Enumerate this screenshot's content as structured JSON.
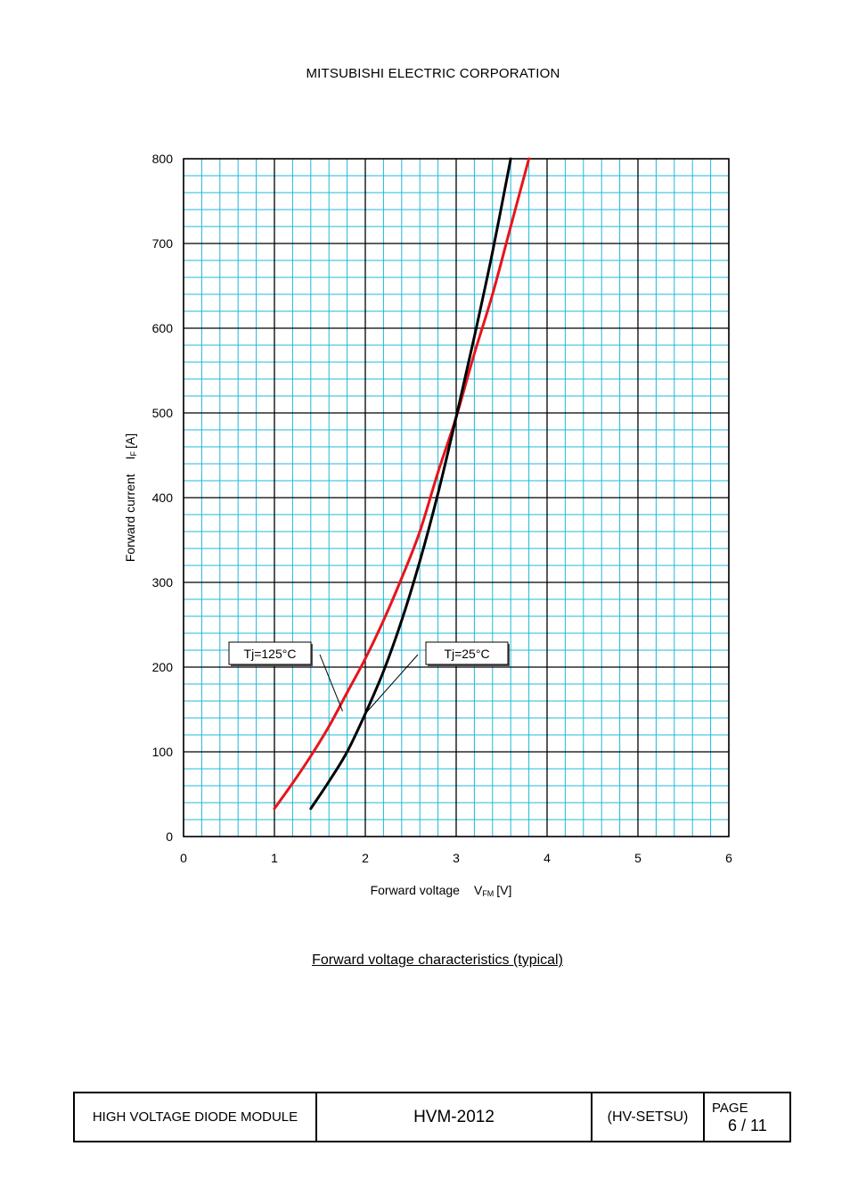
{
  "header": {
    "company": "MITSUBISHI ELECTRIC CORPORATION"
  },
  "chart_data": {
    "type": "line",
    "title": "",
    "xlabel": "Forward voltage",
    "xlabel_symbol": "V",
    "xlabel_sub": "FM",
    "xlabel_unit": "[V]",
    "ylabel": "Forward current",
    "ylabel_symbol": "I",
    "ylabel_sub": "F",
    "ylabel_unit": "[A]",
    "xlim": [
      0,
      6
    ],
    "ylim": [
      0,
      800
    ],
    "x_ticks": [
      0,
      1,
      2,
      3,
      4,
      5,
      6
    ],
    "y_ticks": [
      0,
      100,
      200,
      300,
      400,
      500,
      600,
      700,
      800
    ],
    "grid": true,
    "series": [
      {
        "name": "Tj=125°C",
        "color": "#e8141b",
        "points": [
          [
            1.0,
            33
          ],
          [
            1.2,
            63
          ],
          [
            1.4,
            95
          ],
          [
            1.6,
            130
          ],
          [
            1.8,
            170
          ],
          [
            2.0,
            210
          ],
          [
            2.2,
            255
          ],
          [
            2.4,
            305
          ],
          [
            2.6,
            360
          ],
          [
            2.8,
            430
          ],
          [
            3.0,
            495
          ],
          [
            3.2,
            570
          ],
          [
            3.4,
            640
          ],
          [
            3.6,
            720
          ],
          [
            3.8,
            800
          ]
        ]
      },
      {
        "name": "Tj=25°C",
        "color": "#000000",
        "points": [
          [
            1.4,
            33
          ],
          [
            1.6,
            65
          ],
          [
            1.8,
            100
          ],
          [
            2.0,
            145
          ],
          [
            2.2,
            195
          ],
          [
            2.4,
            255
          ],
          [
            2.6,
            325
          ],
          [
            2.8,
            405
          ],
          [
            3.0,
            495
          ],
          [
            3.2,
            590
          ],
          [
            3.4,
            690
          ],
          [
            3.6,
            800
          ]
        ]
      }
    ],
    "annotations": [
      {
        "text": "Tj=125°C",
        "series": 0
      },
      {
        "text": "Tj=25°C",
        "series": 1
      }
    ],
    "caption": "Forward voltage characteristics (typical)"
  },
  "footer": {
    "product": "HIGH VOLTAGE DIODE MODULE",
    "model": "HVM-2012",
    "code": "(HV-SETSU)",
    "page_label": "PAGE",
    "page_number": "6 / 11"
  }
}
